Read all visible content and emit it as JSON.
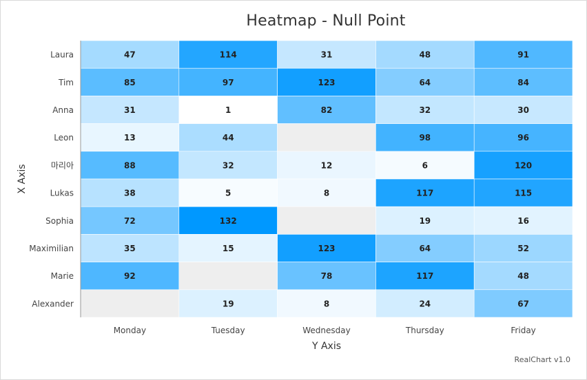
{
  "chart_data": {
    "type": "heatmap",
    "title": "Heatmap - Null Point",
    "xlabel": "Y Axis",
    "ylabel": "X Axis",
    "x_categories": [
      "Monday",
      "Tuesday",
      "Wednesday",
      "Thursday",
      "Friday"
    ],
    "y_categories": [
      "Laura",
      "Tim",
      "Anna",
      "Leon",
      "마리아",
      "Lukas",
      "Sophia",
      "Maximilian",
      "Marie",
      "Alexander"
    ],
    "values": [
      [
        47,
        114,
        31,
        48,
        91
      ],
      [
        85,
        97,
        123,
        64,
        84
      ],
      [
        31,
        1,
        82,
        32,
        30
      ],
      [
        13,
        44,
        null,
        98,
        96
      ],
      [
        88,
        32,
        12,
        6,
        120
      ],
      [
        38,
        5,
        8,
        117,
        115
      ],
      [
        72,
        132,
        null,
        19,
        16
      ],
      [
        35,
        15,
        123,
        64,
        52
      ],
      [
        92,
        null,
        78,
        117,
        48
      ],
      [
        null,
        19,
        8,
        24,
        67
      ]
    ],
    "color_range": {
      "min": 1,
      "max": 132,
      "min_color": "#ffffff",
      "max_color": "#0098ff"
    },
    "null_color": "#eeeeee"
  },
  "credit": "RealChart v1.0"
}
